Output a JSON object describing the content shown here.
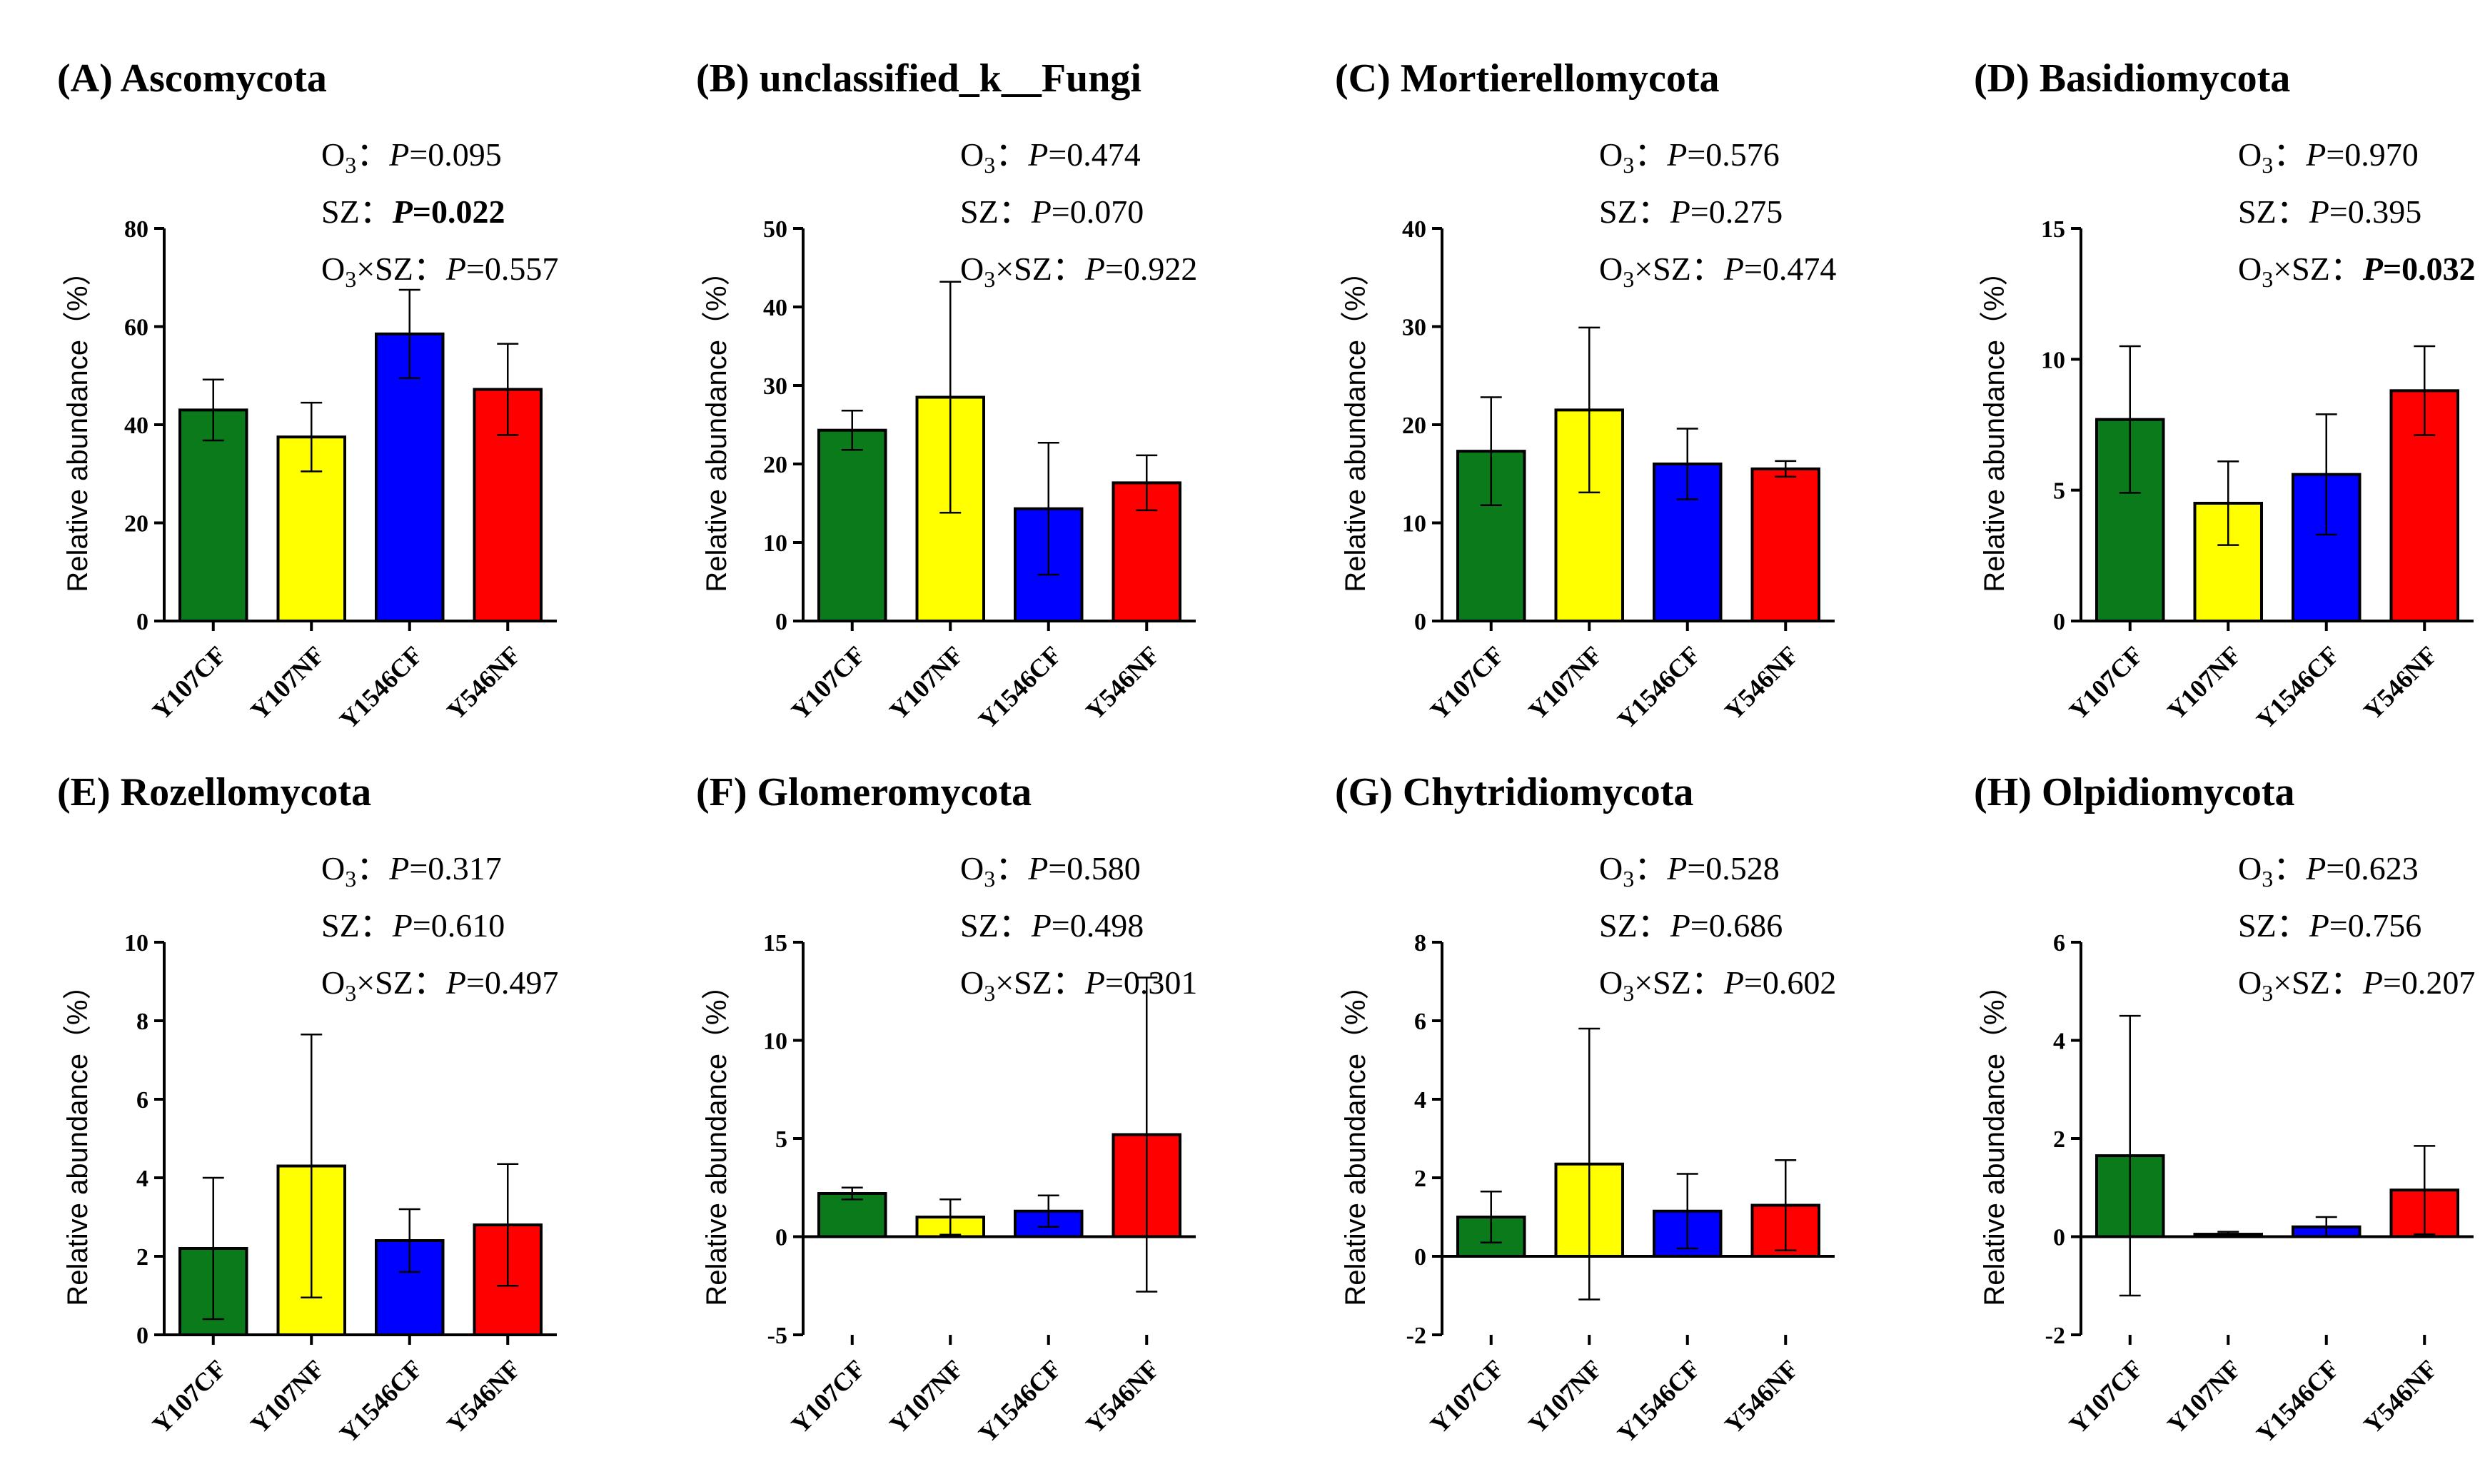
{
  "colors": {
    "green": "#0b7a1a",
    "yellow": "#ffff00",
    "blue": "#0000ff",
    "red": "#ff0000"
  },
  "chart_data": [
    {
      "type": "bar",
      "panel": "(A)",
      "title": "Ascomycota",
      "ylabel": "Relative abundance（%）",
      "categories": [
        "Y107CF",
        "Y107NF",
        "Y1546CF",
        "Y546NF"
      ],
      "values": [
        43,
        37.5,
        58.5,
        47.2
      ],
      "errors": [
        6.2,
        7,
        9,
        9.3
      ],
      "ylim": [
        0,
        80
      ],
      "yticks": [
        "0",
        "20",
        "40",
        "60",
        "80"
      ],
      "stats": [
        {
          "label": "O3",
          "sub": "3",
          "sep": "：",
          "p": "P",
          "value": "=0.095",
          "bold": false
        },
        {
          "label": "SZ",
          "sep": "：",
          "p": "P",
          "value": "=0.022",
          "bold": true
        },
        {
          "label": "O3×SZ",
          "sep": "：",
          "p": "P",
          "value": "=0.557",
          "bold": false
        }
      ]
    },
    {
      "type": "bar",
      "panel": "(B)",
      "title": "unclassified_k__Fungi",
      "ylabel": "Relative abundance（%）",
      "categories": [
        "Y107CF",
        "Y107NF",
        "Y1546CF",
        "Y546NF"
      ],
      "values": [
        24.3,
        28.5,
        14.3,
        17.6
      ],
      "errors": [
        2.5,
        14.7,
        8.4,
        3.5
      ],
      "ylim": [
        0,
        50
      ],
      "yticks": [
        "0",
        "10",
        "20",
        "30",
        "40",
        "50"
      ],
      "stats": [
        {
          "label": "O3",
          "sep": "：",
          "p": "P",
          "value": "=0.474",
          "bold": false
        },
        {
          "label": "SZ",
          "sep": "：",
          "p": "P",
          "value": "=0.070",
          "bold": false
        },
        {
          "label": "O3×SZ",
          "sep": "：",
          "p": "P",
          "value": "=0.922",
          "bold": false
        }
      ]
    },
    {
      "type": "bar",
      "panel": "(C)",
      "title": "Mortierellomycota",
      "ylabel": "Relative abundance（%）",
      "categories": [
        "Y107CF",
        "Y107NF",
        "Y1546CF",
        "Y546NF"
      ],
      "values": [
        17.3,
        21.5,
        16,
        15.5
      ],
      "errors": [
        5.5,
        8.4,
        3.6,
        0.8
      ],
      "ylim": [
        0,
        40
      ],
      "yticks": [
        "0",
        "10",
        "20",
        "30",
        "40"
      ],
      "stats": [
        {
          "label": "O3",
          "sep": "：",
          "p": "P",
          "value": "=0.576",
          "bold": false
        },
        {
          "label": "SZ",
          "sep": "：",
          "p": "P",
          "value": "=0.275",
          "bold": false
        },
        {
          "label": "O3×SZ",
          "sep": "：",
          "p": "P",
          "value": "=0.474",
          "bold": false
        }
      ]
    },
    {
      "type": "bar",
      "panel": "(D)",
      "title": "Basidiomycota",
      "ylabel": "Relative abundance（%）",
      "categories": [
        "Y107CF",
        "Y107NF",
        "Y1546CF",
        "Y546NF"
      ],
      "values": [
        7.7,
        4.5,
        5.6,
        8.8
      ],
      "errors": [
        2.8,
        1.6,
        2.3,
        1.7
      ],
      "ylim": [
        0,
        15
      ],
      "yticks": [
        "0",
        "5",
        "10",
        "15"
      ],
      "stats": [
        {
          "label": "O3",
          "sep": "：",
          "p": "P",
          "value": "=0.970",
          "bold": false
        },
        {
          "label": "SZ",
          "sep": "：",
          "p": "P",
          "value": "=0.395",
          "bold": false
        },
        {
          "label": "O3×SZ",
          "sep": "：",
          "p": "P",
          "value": "=0.032",
          "bold": true
        }
      ]
    },
    {
      "type": "bar",
      "panel": "(E)",
      "title": "Rozellomycota",
      "ylabel": "Relative abundance（%）",
      "categories": [
        "Y107CF",
        "Y107NF",
        "Y1546CF",
        "Y546NF"
      ],
      "values": [
        2.2,
        4.3,
        2.4,
        2.8
      ],
      "errors": [
        1.8,
        3.35,
        0.8,
        1.55
      ],
      "ylim": [
        0,
        10
      ],
      "yticks": [
        "0",
        "2",
        "4",
        "6",
        "8",
        "10"
      ],
      "stats": [
        {
          "label": "O3",
          "sep": "：",
          "p": "P",
          "value": "=0.317",
          "bold": false
        },
        {
          "label": "SZ",
          "sep": "：",
          "p": "P",
          "value": "=0.610",
          "bold": false
        },
        {
          "label": "O3×SZ",
          "sep": "：",
          "p": "P",
          "value": "=0.497",
          "bold": false
        }
      ]
    },
    {
      "type": "bar",
      "panel": "(F)",
      "title": "Glomeromycota",
      "ylabel": "Relative abundance（%）",
      "categories": [
        "Y107CF",
        "Y107NF",
        "Y1546CF",
        "Y546NF"
      ],
      "values": [
        2.2,
        1,
        1.3,
        5.2
      ],
      "errors": [
        0.3,
        0.9,
        0.8,
        8
      ],
      "ylim": [
        -5,
        15
      ],
      "yticks": [
        "-5",
        "0",
        "5",
        "10",
        "15"
      ],
      "stats": [
        {
          "label": "O3",
          "sep": "：",
          "p": "P",
          "value": "=0.580",
          "bold": false
        },
        {
          "label": "SZ",
          "sep": "：",
          "p": "P",
          "value": "=0.498",
          "bold": false
        },
        {
          "label": "O3×SZ",
          "sep": "：",
          "p": "P",
          "value": "=0.301",
          "bold": false
        }
      ]
    },
    {
      "type": "bar",
      "panel": "(G)",
      "title": "Chytridiomycota",
      "ylabel": "Relative abundance（%）",
      "categories": [
        "Y107CF",
        "Y107NF",
        "Y1546CF",
        "Y546NF"
      ],
      "values": [
        1,
        2.35,
        1.15,
        1.3
      ],
      "errors": [
        0.65,
        3.45,
        0.95,
        1.15
      ],
      "ylim": [
        -2,
        8
      ],
      "yticks": [
        "-2",
        "0",
        "2",
        "4",
        "6",
        "8"
      ],
      "stats": [
        {
          "label": "O3",
          "sep": "：",
          "p": "P",
          "value": "=0.528",
          "bold": false
        },
        {
          "label": "SZ",
          "sep": "：",
          "p": "P",
          "value": "=0.686",
          "bold": false
        },
        {
          "label": "O3×SZ",
          "sep": "：",
          "p": "P",
          "value": "=0.602",
          "bold": false
        }
      ]
    },
    {
      "type": "bar",
      "panel": "(H)",
      "title": "Olpidiomycota",
      "ylabel": "Relative abundance（%）",
      "categories": [
        "Y107CF",
        "Y107NF",
        "Y1546CF",
        "Y546NF"
      ],
      "values": [
        1.65,
        0.05,
        0.2,
        0.95
      ],
      "errors": [
        2.85,
        0.05,
        0.2,
        0.9
      ],
      "ylim": [
        -2,
        6
      ],
      "yticks": [
        "-2",
        "0",
        "2",
        "4",
        "6"
      ],
      "stats": [
        {
          "label": "O3",
          "sep": "：",
          "p": "P",
          "value": "=0.623",
          "bold": false
        },
        {
          "label": "SZ",
          "sep": "：",
          "p": "P",
          "value": "=0.756",
          "bold": false
        },
        {
          "label": "O3×SZ",
          "sep": "：",
          "p": "P",
          "value": "=0.207",
          "bold": false
        }
      ]
    }
  ]
}
